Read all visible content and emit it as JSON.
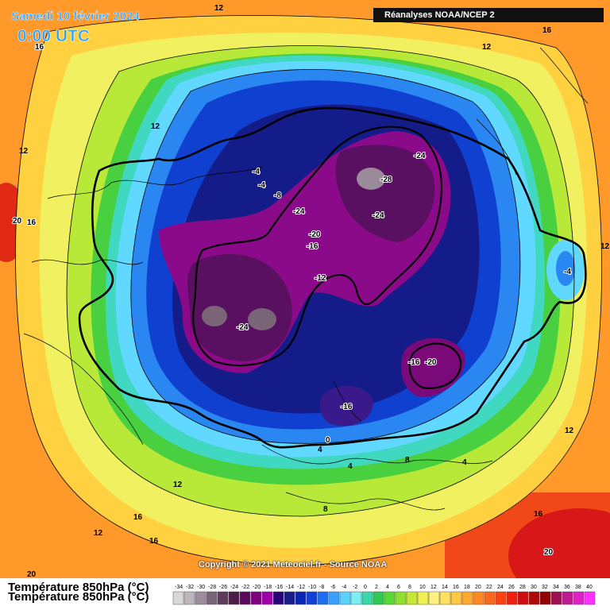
{
  "header": {
    "date": "Samedi 10 février 2024",
    "time": "0:00 UTC",
    "source": "Réanalyses NOAA/NCEP 2"
  },
  "footer": {
    "copyright": "Copyright © 2021 Meteociel.fr - Source NOAA",
    "variable": "Température 850hPa (°C)"
  },
  "legend": {
    "ticks": [
      "-34",
      "-32",
      "-30",
      "-28",
      "-26",
      "-24",
      "-22",
      "-20",
      "-18",
      "-16",
      "-14",
      "-12",
      "-10",
      "-8",
      "-6",
      "-4",
      "-2",
      "0",
      "2",
      "4",
      "6",
      "8",
      "10",
      "12",
      "14",
      "16",
      "18",
      "20",
      "22",
      "24",
      "26",
      "28",
      "30",
      "32",
      "34",
      "36",
      "38",
      "40"
    ],
    "colors": [
      "#d8d8d8",
      "#bdb6bd",
      "#9c8c9c",
      "#7a6478",
      "#5c3c5a",
      "#4a1c4a",
      "#5a0a5a",
      "#800080",
      "#a000a8",
      "#2a0078",
      "#1a1a8c",
      "#0a24b4",
      "#1040d8",
      "#1c6ef0",
      "#3aa0ff",
      "#5ad2ff",
      "#7af0f0",
      "#38d8a8",
      "#30c850",
      "#58d830",
      "#90e030",
      "#c8e838",
      "#f0f050",
      "#fff080",
      "#ffe060",
      "#ffc840",
      "#ffa830",
      "#ff8820",
      "#ff6818",
      "#ff4010",
      "#f02010",
      "#d00c0c",
      "#b00808",
      "#900404",
      "#a01050",
      "#c01890",
      "#e020c8",
      "#ff30ff"
    ]
  },
  "map_labels": [
    {
      "text": "12",
      "kind": "isotherm"
    },
    {
      "text": "16",
      "kind": "isotherm"
    },
    {
      "text": "16",
      "kind": "isotherm"
    },
    {
      "text": "12",
      "kind": "isotherm"
    },
    {
      "text": "12",
      "kind": "isotherm"
    },
    {
      "text": "12",
      "kind": "isotherm"
    },
    {
      "text": "20",
      "kind": "isotherm"
    },
    {
      "text": "16",
      "kind": "isotherm"
    },
    {
      "text": "-4",
      "kind": "isotherm"
    },
    {
      "text": "-4",
      "kind": "isotherm"
    },
    {
      "text": "-8",
      "kind": "isotherm"
    },
    {
      "text": "-24",
      "kind": "isotherm"
    },
    {
      "text": "-28",
      "kind": "isotherm"
    },
    {
      "text": "-24",
      "kind": "isotherm"
    },
    {
      "text": "-24",
      "kind": "isotherm"
    },
    {
      "text": "-20",
      "kind": "isotherm"
    },
    {
      "text": "-16",
      "kind": "isotherm"
    },
    {
      "text": "-12",
      "kind": "isotherm"
    },
    {
      "text": "-24",
      "kind": "isotherm"
    },
    {
      "text": "-4",
      "kind": "isotherm"
    },
    {
      "text": "12",
      "kind": "isotherm"
    },
    {
      "text": "-16",
      "kind": "isotherm"
    },
    {
      "text": "-20",
      "kind": "isotherm"
    },
    {
      "text": "-16",
      "kind": "isotherm"
    },
    {
      "text": "0",
      "kind": "isotherm"
    },
    {
      "text": "4",
      "kind": "isotherm"
    },
    {
      "text": "4",
      "kind": "isotherm"
    },
    {
      "text": "8",
      "kind": "isotherm"
    },
    {
      "text": "4",
      "kind": "isotherm"
    },
    {
      "text": "12",
      "kind": "isotherm"
    },
    {
      "text": "8",
      "kind": "isotherm"
    },
    {
      "text": "12",
      "kind": "isotherm"
    },
    {
      "text": "16",
      "kind": "isotherm"
    },
    {
      "text": "12",
      "kind": "isotherm"
    },
    {
      "text": "16",
      "kind": "isotherm"
    },
    {
      "text": "16",
      "kind": "isotherm"
    },
    {
      "text": "20",
      "kind": "isotherm"
    },
    {
      "text": "20",
      "kind": "isotherm"
    }
  ]
}
